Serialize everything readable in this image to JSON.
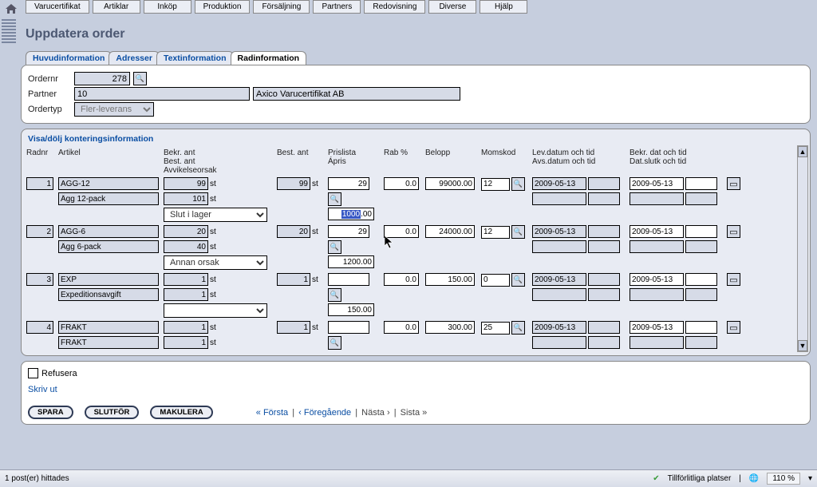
{
  "main_tabs": [
    "Varucertifikat",
    "Artiklar",
    "Inköp",
    "Produktion",
    "Försäljning",
    "Partners",
    "Redovisning",
    "Diverse",
    "Hjälp"
  ],
  "title": "Uppdatera order",
  "subtabs": [
    {
      "label": "Huvudinformation",
      "active": false
    },
    {
      "label": "Adresser",
      "active": false
    },
    {
      "label": "Textinformation",
      "active": false
    },
    {
      "label": "Radinformation",
      "active": true
    }
  ],
  "order": {
    "ordernr_label": "Ordernr",
    "ordernr": "278",
    "partner_label": "Partner",
    "partner_id": "10",
    "partner_name": "Axico Varucertifikat AB",
    "ordertyp_label": "Ordertyp",
    "ordertyp": "Fler-leverans"
  },
  "grid": {
    "toggle": "Visa/dölj konteringsinformation",
    "headers": {
      "radnr": "Radnr",
      "artikel": "Artikel",
      "bekr": "Bekr. ant\nBest. ant\nAvvikelseorsak",
      "best": "Best. ant",
      "pris": "Prislista\nÁpris",
      "rab": "Rab %",
      "belopp": "Belopp",
      "momskod": "Momskod",
      "lev": "Lev.datum och tid\nAvs.datum och tid",
      "bekrd": "Bekr. dat och tid\nDat.slutk och tid"
    },
    "rows": [
      {
        "nr": "1",
        "art": "AGG-12",
        "desc": "Ägg 12-pack",
        "bekr_ant": "99",
        "bekr_unit": "st",
        "best_ant2": "101",
        "best_unit2": "st",
        "reason": "Slut i lager",
        "best": "99",
        "best_unit": "st",
        "pris": "29",
        "apris_sel": "1000",
        "apris_dec": ".00",
        "rab": "0.0",
        "belopp": "99000.00",
        "momskod": "12",
        "lev": "2009-05-13",
        "bekrd": "2009-05-13"
      },
      {
        "nr": "2",
        "art": "AGG-6",
        "desc": "Ägg 6-pack",
        "bekr_ant": "20",
        "bekr_unit": "st",
        "best_ant2": "40",
        "best_unit2": "st",
        "reason": "Annan orsak",
        "best": "20",
        "best_unit": "st",
        "pris": "29",
        "apris": "1200.00",
        "rab": "0.0",
        "belopp": "24000.00",
        "momskod": "12",
        "lev": "2009-05-13",
        "bekrd": "2009-05-13"
      },
      {
        "nr": "3",
        "art": "EXP",
        "desc": "Expeditionsavgift",
        "bekr_ant": "1",
        "bekr_unit": "st",
        "best_ant2": "1",
        "best_unit2": "st",
        "reason": "",
        "best": "1",
        "best_unit": "st",
        "pris": "",
        "apris": "150.00",
        "rab": "0.0",
        "belopp": "150.00",
        "momskod": "0",
        "lev": "2009-05-13",
        "bekrd": "2009-05-13"
      },
      {
        "nr": "4",
        "art": "FRAKT",
        "desc": "FRAKT",
        "bekr_ant": "1",
        "bekr_unit": "st",
        "best_ant2": "1",
        "best_unit2": "st",
        "reason": "",
        "best": "1",
        "best_unit": "st",
        "pris": "",
        "apris": "",
        "rab": "0.0",
        "belopp": "300.00",
        "momskod": "25",
        "lev": "2009-05-13",
        "bekrd": "2009-05-13"
      }
    ]
  },
  "bottom": {
    "refusera": "Refusera",
    "skrivut": "Skriv ut",
    "spara": "SPARA",
    "slutfor": "SLUTFÖR",
    "makulera": "MAKULERA",
    "pager_first": "« Första",
    "pager_prev": "‹ Föregående",
    "pager_next": "Nästa ›",
    "pager_last": "Sista »"
  },
  "status": {
    "left": "1 post(er) hittades",
    "trust": "Tillförlitliga platser",
    "zoom": "110 %"
  },
  "colors": {
    "page_bg": "#c6cede",
    "link": "#0a4ea3",
    "field_bg": "#d6dbe7",
    "panel_alt": "#e8ebf3"
  }
}
